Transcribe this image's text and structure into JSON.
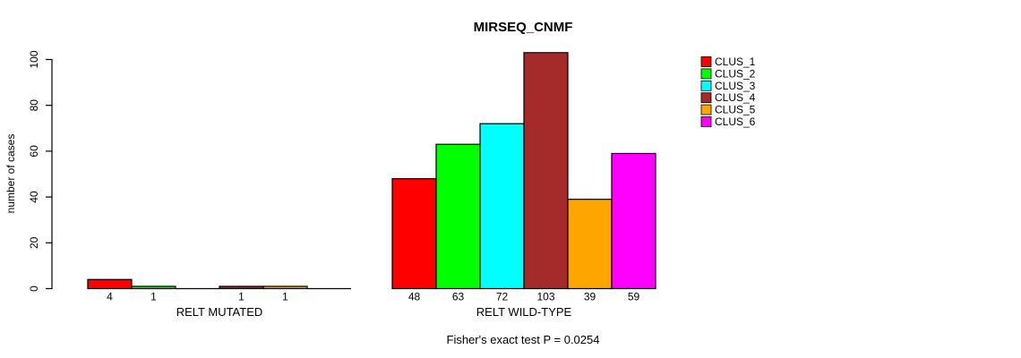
{
  "title": "MIRSEQ_CNMF",
  "chart_data": {
    "type": "bar",
    "title": "MIRSEQ_CNMF",
    "ylabel": "number of cases",
    "xlabel": "",
    "ylim": [
      0,
      100
    ],
    "yticks": [
      0,
      20,
      40,
      60,
      80,
      100
    ],
    "grid": false,
    "legend_position": "right",
    "annotation": "Fisher's exact test P = 0.0254",
    "legend": {
      "entries": [
        {
          "label": "CLUS_1",
          "color": "#FF0000"
        },
        {
          "label": "CLUS_2",
          "color": "#00FF00"
        },
        {
          "label": "CLUS_3",
          "color": "#00FFFF"
        },
        {
          "label": "CLUS_4",
          "color": "#A52A2A"
        },
        {
          "label": "CLUS_5",
          "color": "#FFA500"
        },
        {
          "label": "CLUS_6",
          "color": "#FF00FF"
        }
      ]
    },
    "groups": [
      {
        "label": "RELT MUTATED",
        "values": [
          4,
          1,
          0,
          1,
          1,
          0
        ]
      },
      {
        "label": "RELT WILD-TYPE",
        "values": [
          48,
          63,
          72,
          103,
          39,
          59
        ]
      }
    ],
    "axis_color": "#000000",
    "bar_border_color": "#000000"
  }
}
